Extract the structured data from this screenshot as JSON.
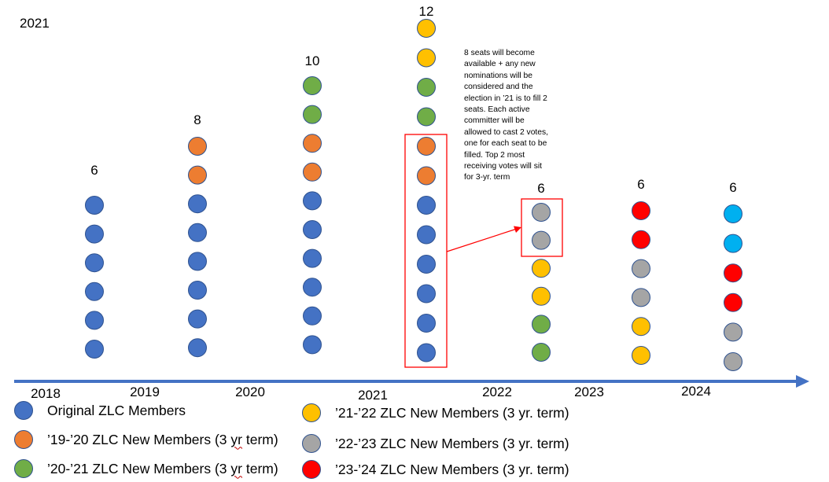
{
  "header": {
    "year": "2021"
  },
  "colors": {
    "original": "#4472c4",
    "m19_20": "#ed7d31",
    "m20_21": "#70ad47",
    "m21_22": "#ffc000",
    "m22_23": "#a5a5a5",
    "m23_24": "#ff0000",
    "m24": "#00b0f0",
    "axis": "#4472c4",
    "highlight": "#ff0000"
  },
  "columns": [
    {
      "count": "6",
      "members": [
        "original",
        "original",
        "original",
        "original",
        "original",
        "original"
      ]
    },
    {
      "count": "8",
      "members": [
        "m19_20",
        "m19_20",
        "original",
        "original",
        "original",
        "original",
        "original",
        "original"
      ]
    },
    {
      "count": "10",
      "members": [
        "m20_21",
        "m20_21",
        "m19_20",
        "m19_20",
        "original",
        "original",
        "original",
        "original",
        "original",
        "original"
      ]
    },
    {
      "count": "12",
      "members": [
        "m21_22",
        "m21_22",
        "m20_21",
        "m20_21",
        "m19_20",
        "m19_20",
        "original",
        "original",
        "original",
        "original",
        "original",
        "original"
      ]
    },
    {
      "count": "6",
      "members": [
        "m22_23",
        "m22_23",
        "m21_22",
        "m21_22",
        "m20_21",
        "m20_21"
      ]
    },
    {
      "count": "6",
      "members": [
        "m23_24",
        "m23_24",
        "m22_23",
        "m22_23",
        "m21_22",
        "m21_22"
      ]
    },
    {
      "count": "6",
      "members": [
        "m24",
        "m24",
        "m23_24",
        "m23_24",
        "m22_23",
        "m22_23"
      ]
    }
  ],
  "axis": {
    "years": [
      "2018",
      "2019",
      "2020",
      "2021",
      "2022",
      "2023",
      "2024"
    ]
  },
  "note": {
    "lines": [
      "8 seats will become",
      "available + any new",
      "nominations will be",
      "considered  and the",
      "election in ’21 is to fill 2",
      "seats. Each active",
      "committer will be",
      "allowed to cast 2 votes,",
      "one for each seat to be",
      "filled. Top 2 most",
      "receiving votes will sit",
      "for 3-yr. term"
    ]
  },
  "legend": [
    {
      "key": "original",
      "pre": "Original ZLC Members",
      "squiggle": "",
      "post": ""
    },
    {
      "key": "m19_20",
      "pre": "’19-’20 ZLC New Members (3 ",
      "squiggle": "yr",
      "post": " term)"
    },
    {
      "key": "m20_21",
      "pre": "’20-’21 ZLC New Members (3 ",
      "squiggle": "yr",
      "post": " term)"
    },
    {
      "key": "m21_22",
      "pre": "’21-’22 ZLC New Members (3 yr. term)",
      "squiggle": "",
      "post": ""
    },
    {
      "key": "m22_23",
      "pre": "’22-’23 ZLC New Members (3 yr. term)",
      "squiggle": "",
      "post": ""
    },
    {
      "key": "m23_24",
      "pre": "’23-’24 ZLC New Members (3 yr. term)",
      "squiggle": "",
      "post": ""
    }
  ]
}
